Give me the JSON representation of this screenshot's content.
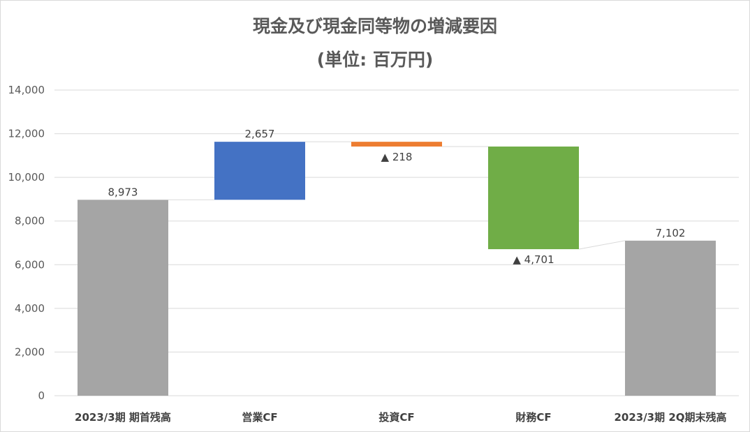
{
  "chart_data": {
    "type": "waterfall",
    "title": "現金及び現金同等物の増減要因",
    "subtitle": "(単位: 百万円)",
    "ylim": [
      0,
      14000
    ],
    "y_ticks": [
      "14,000",
      "12,000",
      "10,000",
      "8,000",
      "6,000",
      "4,000",
      "2,000",
      "0"
    ],
    "y_tick_values": [
      14000,
      12000,
      10000,
      8000,
      6000,
      4000,
      2000,
      0
    ],
    "grid": true,
    "categories": [
      "2023/3期 期首残高",
      "営業CF",
      "投資CF",
      "財務CF",
      "2023/3期 2Q期末残高"
    ],
    "bars": [
      {
        "category": "2023/3期 期首残高",
        "kind": "total",
        "start": 0,
        "end": 8973,
        "label": "8,973",
        "color": "#a5a5a5"
      },
      {
        "category": "営業CF",
        "kind": "increase",
        "start": 8973,
        "end": 11630,
        "label": "2,657",
        "color": "#4472c4"
      },
      {
        "category": "投資CF",
        "kind": "decrease",
        "start": 11630,
        "end": 11412,
        "label": "▲ 218",
        "color": "#ed7d31"
      },
      {
        "category": "財務CF",
        "kind": "decrease",
        "start": 11412,
        "end": 6711,
        "label": "▲ 4,701",
        "color": "#70ad47"
      },
      {
        "category": "2023/3期 2Q期末残高",
        "kind": "total",
        "start": 0,
        "end": 7102,
        "label": "7,102",
        "color": "#a5a5a5"
      }
    ]
  }
}
